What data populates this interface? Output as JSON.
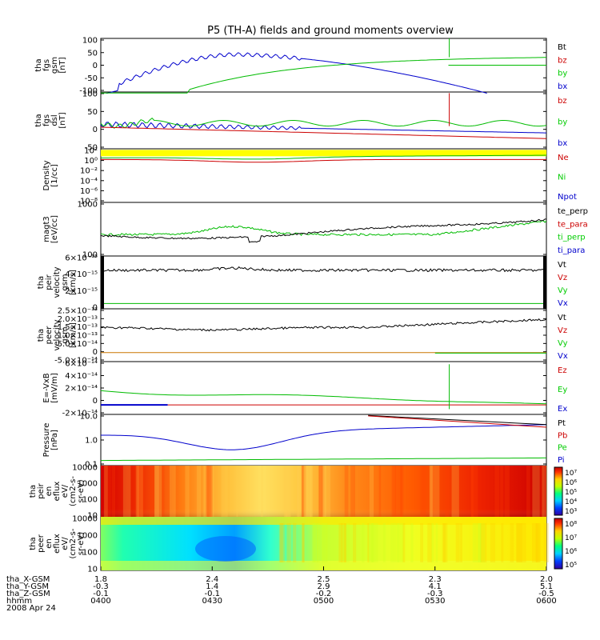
{
  "title": "P5 (TH-A) fields and ground moments overview",
  "chart_data": {
    "type": "line",
    "x_ticks": [
      {
        "hhmm": "0400",
        "X": "1.8",
        "Y": "-0.3",
        "Z": "-0.1"
      },
      {
        "hhmm": "0430",
        "X": "2.4",
        "Y": "1.4",
        "Z": "-0.1"
      },
      {
        "hhmm": "0500",
        "X": "2.5",
        "Y": "2.9",
        "Z": "-0.2"
      },
      {
        "hhmm": "0530",
        "X": "2.3",
        "Y": "4.1",
        "Z": "-0.3"
      },
      {
        "hhmm": "0600",
        "X": "2.0",
        "Y": "5.1",
        "Z": "-0.5"
      }
    ],
    "x_row_labels": [
      "tha_X-GSM",
      "tha_Y-GSM",
      "tha_Z-GSM",
      "hhmm",
      "2008 Apr 24"
    ],
    "panels": [
      {
        "ylabel": [
          "tha",
          "fgs",
          "gsm",
          "[nT]"
        ],
        "scale": "linear",
        "yticks": [
          "100",
          "50",
          "0",
          "-50",
          "-100"
        ],
        "legend": [
          {
            "name": "Bt",
            "color": "#000000"
          },
          {
            "name": "bz",
            "color": "#cc0000"
          },
          {
            "name": "by",
            "color": "#00cc00"
          },
          {
            "name": "bx",
            "color": "#0000cc"
          }
        ]
      },
      {
        "ylabel": [
          "tha",
          "fgs",
          "dsl",
          "[nT]"
        ],
        "scale": "linear",
        "yticks": [
          "100",
          "50",
          "0",
          "-50"
        ],
        "legend": [
          {
            "name": "bz",
            "color": "#cc0000"
          },
          {
            "name": "by",
            "color": "#00cc00"
          },
          {
            "name": "bx",
            "color": "#0000cc"
          }
        ]
      },
      {
        "ylabel": [
          "Density",
          "[1/cc]"
        ],
        "scale": "log",
        "yticks": [
          "10²",
          "10⁰",
          "10⁻²",
          "10⁻⁴",
          "10⁻⁶",
          "10⁻⁸"
        ],
        "legend": [
          {
            "name": "Ne",
            "color": "#cc0000"
          },
          {
            "name": "Ni",
            "color": "#00cc00"
          },
          {
            "name": "Npot",
            "color": "#0000cc"
          }
        ]
      },
      {
        "ylabel": [
          "magt3",
          "[eV/cc]"
        ],
        "scale": "log",
        "yticks": [
          "1000",
          "100"
        ],
        "legend": [
          {
            "name": "te_perp",
            "color": "#000000"
          },
          {
            "name": "te_para",
            "color": "#cc0000"
          },
          {
            "name": "ti_perp",
            "color": "#00cc00"
          },
          {
            "name": "ti_para",
            "color": "#0000cc"
          }
        ]
      },
      {
        "ylabel": [
          "tha",
          "peir",
          "velocity",
          "gsm",
          "[km/s]"
        ],
        "scale": "linear",
        "yticks": [
          "6×10⁻¹⁵",
          "4×10⁻¹⁵",
          "2×10⁻¹⁵",
          "0"
        ],
        "legend": [
          {
            "name": "Vt",
            "color": "#000000"
          },
          {
            "name": "Vz",
            "color": "#cc0000"
          },
          {
            "name": "Vy",
            "color": "#00cc00"
          },
          {
            "name": "Vx",
            "color": "#0000cc"
          }
        ]
      },
      {
        "ylabel": [
          "tha",
          "peer",
          "velocity",
          "gsm",
          "[km/s]"
        ],
        "scale": "linear",
        "yticks": [
          "2.5×10⁻¹³",
          "2.0×10⁻¹³",
          "1.5×10⁻¹³",
          "1.0×10⁻¹³",
          "5.0×10⁻¹⁴",
          "0",
          "-5.0×10⁻¹⁴"
        ],
        "legend": [
          {
            "name": "Vt",
            "color": "#000000"
          },
          {
            "name": "Vz",
            "color": "#cc0000"
          },
          {
            "name": "Vy",
            "color": "#00cc00"
          },
          {
            "name": "Vx",
            "color": "#0000cc"
          }
        ]
      },
      {
        "ylabel": [
          "E=-VxB",
          "[mV/m]"
        ],
        "scale": "linear",
        "yticks": [
          "6×10⁻¹⁴",
          "4×10⁻¹⁴",
          "2×10⁻¹⁴",
          "0",
          "-2×10⁻¹⁴"
        ],
        "legend": [
          {
            "name": "Ez",
            "color": "#cc0000"
          },
          {
            "name": "Ey",
            "color": "#00cc00"
          },
          {
            "name": "Ex",
            "color": "#0000cc"
          }
        ]
      },
      {
        "ylabel": [
          "Pressure",
          "[nPa]"
        ],
        "scale": "log",
        "yticks": [
          "10.0",
          "1.0",
          "0.1"
        ],
        "legend": [
          {
            "name": "Pt",
            "color": "#000000"
          },
          {
            "name": "Pb",
            "color": "#cc0000"
          },
          {
            "name": "Pe",
            "color": "#00cc00"
          },
          {
            "name": "Pi",
            "color": "#0000cc"
          }
        ]
      },
      {
        "ylabel": [
          "tha",
          "peir",
          "en",
          "eflux",
          "eV/",
          "(cm2-s-",
          "sr-eV)"
        ],
        "scale": "log",
        "yticks": [
          "10000",
          "1000",
          "100",
          "10"
        ],
        "colorbar": [
          "10⁷",
          "10⁶",
          "10⁵",
          "10⁴",
          "10³"
        ]
      },
      {
        "ylabel": [
          "tha",
          "peer",
          "en",
          "eflux",
          "eV/",
          "(cm2-s-",
          "sr-eV)"
        ],
        "scale": "log",
        "yticks": [
          "10000",
          "1000",
          "100",
          "10"
        ],
        "colorbar": [
          "10⁸",
          "10⁷",
          "10⁶",
          "10⁵"
        ]
      }
    ]
  }
}
